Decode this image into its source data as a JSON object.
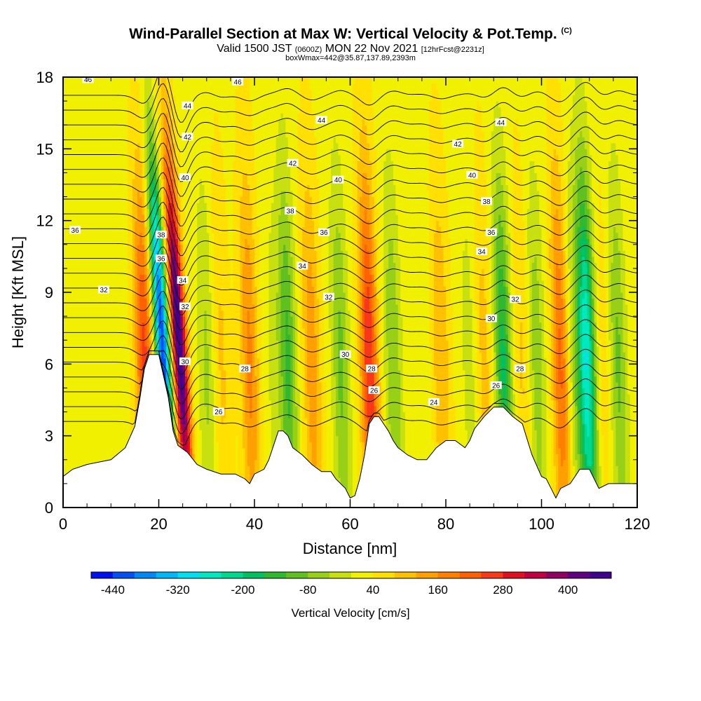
{
  "header": {
    "title": "Wind-Parallel Section at Max W: Vertical Velocity & Pot.Temp.",
    "copyright": "(C)",
    "valid_prefix": "Valid 1500 JST",
    "valid_utc": "(0600Z)",
    "valid_date": "MON 22 Nov 2021",
    "forecast": "[12hrFcst@2231z]",
    "boxwmax": "boxWmax=442@35.87,137.89,2393m"
  },
  "chart_data": {
    "type": "heatmap",
    "xlabel": "Distance [nm]",
    "ylabel": "Height [Kft MSL]",
    "xlim": [
      0,
      120
    ],
    "ylim": [
      0,
      18
    ],
    "x_ticks": [
      0,
      20,
      40,
      60,
      80,
      100,
      120
    ],
    "y_ticks": [
      0,
      3,
      6,
      9,
      12,
      15,
      18
    ],
    "colorbar": {
      "title": "Vertical Velocity [cm/s]",
      "tick_labels": [
        "-440",
        "-320",
        "-200",
        "-80",
        "40",
        "160",
        "280",
        "400"
      ],
      "tick_values": [
        -440,
        -320,
        -200,
        -80,
        40,
        160,
        280,
        400
      ],
      "levels": [
        -480,
        -440,
        -400,
        -360,
        -320,
        -280,
        -240,
        -200,
        -160,
        -120,
        -80,
        -40,
        0,
        40,
        80,
        120,
        160,
        200,
        240,
        280,
        320,
        360,
        400,
        440,
        480
      ],
      "colors": [
        "#0010f0",
        "#0050f4",
        "#0088f6",
        "#00b8f6",
        "#00e0f0",
        "#00e8c0",
        "#00d890",
        "#00c060",
        "#30b830",
        "#60c020",
        "#98d018",
        "#c8e010",
        "#f0f000",
        "#ffe000",
        "#ffc000",
        "#ffa000",
        "#ff8000",
        "#ff6000",
        "#f83818",
        "#e01020",
        "#c00040",
        "#900060",
        "#600080",
        "#40008c"
      ]
    },
    "terrain": {
      "x": [
        0,
        2,
        5,
        10,
        13,
        15,
        16,
        17,
        18,
        19,
        20,
        21,
        22,
        23,
        24,
        26,
        28,
        30,
        33,
        36,
        38,
        39,
        40,
        42,
        43,
        44,
        45,
        46,
        47,
        48,
        50,
        52,
        54,
        56,
        57,
        59,
        60,
        61,
        62,
        63,
        64,
        65,
        66,
        67,
        68,
        69,
        70,
        72,
        74,
        76,
        78,
        80,
        82,
        84,
        85,
        86,
        88,
        90,
        92,
        94,
        96,
        98,
        100,
        101,
        102,
        103,
        104,
        106,
        107,
        108,
        110,
        111,
        112,
        114,
        116,
        118,
        120
      ],
      "y": [
        1.3,
        1.6,
        1.8,
        2.0,
        2.5,
        3.4,
        4.5,
        5.8,
        6.4,
        6.4,
        6.4,
        5.5,
        4.6,
        3.2,
        2.6,
        2.3,
        1.8,
        1.6,
        1.4,
        1.4,
        1.2,
        1.0,
        1.4,
        1.6,
        2.0,
        2.6,
        3.2,
        3.2,
        3.0,
        2.5,
        2.2,
        1.8,
        1.5,
        1.5,
        1.2,
        0.8,
        0.4,
        0.5,
        1.2,
        2.2,
        3.5,
        3.8,
        3.8,
        3.5,
        3.2,
        2.8,
        2.5,
        2.2,
        2.0,
        2.0,
        2.5,
        2.8,
        2.8,
        2.5,
        2.8,
        3.3,
        3.8,
        4.2,
        4.2,
        3.8,
        3.5,
        2.2,
        1.3,
        1.2,
        0.8,
        0.4,
        0.8,
        1.0,
        1.3,
        1.6,
        1.6,
        1.2,
        0.8,
        1.0,
        1.0,
        1.0,
        1.0
      ]
    },
    "vertical_velocity_features": [
      {
        "x": 24.5,
        "amplitude": 460,
        "note": "strong updraft"
      },
      {
        "x": 21.0,
        "amplitude": -460,
        "note": "strong downdraft"
      },
      {
        "x": 17.0,
        "amplitude": 220
      },
      {
        "x": 30.0,
        "amplitude": -80
      },
      {
        "x": 33.0,
        "amplitude": 60
      },
      {
        "x": 39.0,
        "amplitude": 140
      },
      {
        "x": 44.0,
        "amplitude": -40
      },
      {
        "x": 47.0,
        "amplitude": -160
      },
      {
        "x": 52.0,
        "amplitude": 120
      },
      {
        "x": 58.0,
        "amplitude": -120
      },
      {
        "x": 64.0,
        "amplitude": 250
      },
      {
        "x": 69.0,
        "amplitude": -110
      },
      {
        "x": 75.0,
        "amplitude": -30
      },
      {
        "x": 79.0,
        "amplitude": 90
      },
      {
        "x": 85.0,
        "amplitude": -50
      },
      {
        "x": 88.0,
        "amplitude": 70
      },
      {
        "x": 92.0,
        "amplitude": -200
      },
      {
        "x": 96.0,
        "amplitude": 60
      },
      {
        "x": 99.0,
        "amplitude": -100
      },
      {
        "x": 104.0,
        "amplitude": 180
      },
      {
        "x": 107.0,
        "amplitude": -80
      },
      {
        "x": 109.5,
        "amplitude": -300
      },
      {
        "x": 113.0,
        "amplitude": 40
      },
      {
        "x": 116.0,
        "amplitude": -120
      }
    ],
    "theta_contours": [
      24,
      25,
      26,
      27,
      28,
      29,
      30,
      31,
      32,
      33,
      34,
      35,
      36,
      37,
      38,
      39,
      40,
      41,
      42,
      43,
      44,
      45,
      46
    ],
    "contour_labels": [
      {
        "x": 5.2,
        "y": 17.9,
        "text": "46"
      },
      {
        "x": 36.5,
        "y": 17.8,
        "text": "46"
      },
      {
        "x": 26,
        "y": 16.8,
        "text": "44"
      },
      {
        "x": 54,
        "y": 16.2,
        "text": "44"
      },
      {
        "x": 91.5,
        "y": 16.1,
        "text": "44"
      },
      {
        "x": 26,
        "y": 15.5,
        "text": "42"
      },
      {
        "x": 48,
        "y": 14.4,
        "text": "42"
      },
      {
        "x": 82.5,
        "y": 15.2,
        "text": "42"
      },
      {
        "x": 25.5,
        "y": 13.8,
        "text": "40"
      },
      {
        "x": 57.5,
        "y": 13.7,
        "text": "40"
      },
      {
        "x": 85.5,
        "y": 13.9,
        "text": "40"
      },
      {
        "x": 47.5,
        "y": 12.4,
        "text": "38"
      },
      {
        "x": 88.5,
        "y": 12.8,
        "text": "38"
      },
      {
        "x": 2.5,
        "y": 11.6,
        "text": "36"
      },
      {
        "x": 54.5,
        "y": 11.5,
        "text": "36"
      },
      {
        "x": 89.5,
        "y": 11.5,
        "text": "36"
      },
      {
        "x": 20.5,
        "y": 11.4,
        "text": "38"
      },
      {
        "x": 20.5,
        "y": 10.4,
        "text": "36"
      },
      {
        "x": 87.5,
        "y": 10.7,
        "text": "34"
      },
      {
        "x": 50,
        "y": 10.1,
        "text": "34"
      },
      {
        "x": 25,
        "y": 9.5,
        "text": "34"
      },
      {
        "x": 8.5,
        "y": 9.1,
        "text": "32"
      },
      {
        "x": 55.5,
        "y": 8.8,
        "text": "32"
      },
      {
        "x": 94.5,
        "y": 8.7,
        "text": "32"
      },
      {
        "x": 25.5,
        "y": 8.4,
        "text": "32"
      },
      {
        "x": 89.5,
        "y": 7.9,
        "text": "30"
      },
      {
        "x": 59,
        "y": 6.4,
        "text": "30"
      },
      {
        "x": 25.5,
        "y": 6.1,
        "text": "30"
      },
      {
        "x": 38,
        "y": 5.8,
        "text": "28"
      },
      {
        "x": 64.5,
        "y": 5.8,
        "text": "28"
      },
      {
        "x": 95.5,
        "y": 5.8,
        "text": "28"
      },
      {
        "x": 65,
        "y": 4.9,
        "text": "26"
      },
      {
        "x": 90.5,
        "y": 5.1,
        "text": "26"
      },
      {
        "x": 77.5,
        "y": 4.4,
        "text": "24"
      },
      {
        "x": 32.5,
        "y": 4.0,
        "text": "26"
      }
    ]
  }
}
